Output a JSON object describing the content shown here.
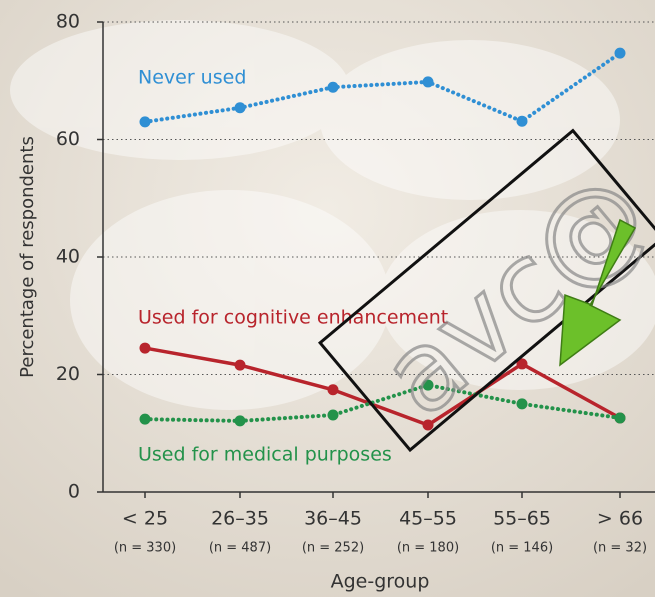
{
  "chart_data": {
    "type": "line",
    "categories": [
      "< 25",
      "26–35",
      "36–45",
      "45–55",
      "55–65",
      "> 66"
    ],
    "category_notes": [
      "(n = 330)",
      "(n = 487)",
      "(n = 252)",
      "(n = 180)",
      "(n = 146)",
      "(n = 32)"
    ],
    "x_label": "Age-group",
    "y_label": "Percentage of respondents",
    "ylim": [
      0,
      80
    ],
    "yticks": [
      0,
      20,
      40,
      60,
      80
    ],
    "grid": true,
    "series": [
      {
        "name": "Never used",
        "color": "#2f8fd4",
        "style": "dotted",
        "values": [
          63.0,
          65.4,
          68.9,
          69.8,
          63.1,
          74.7
        ]
      },
      {
        "name": "Used for cognitive enhancement",
        "color": "#b8242c",
        "style": "solid",
        "values": [
          24.5,
          21.6,
          17.4,
          11.4,
          21.8,
          12.6
        ]
      },
      {
        "name": "Used for medical purposes",
        "color": "#23924a",
        "style": "dotted",
        "values": [
          12.4,
          12.1,
          13.1,
          18.2,
          15.0,
          12.6
        ]
      }
    ],
    "watermark": "avc@"
  }
}
